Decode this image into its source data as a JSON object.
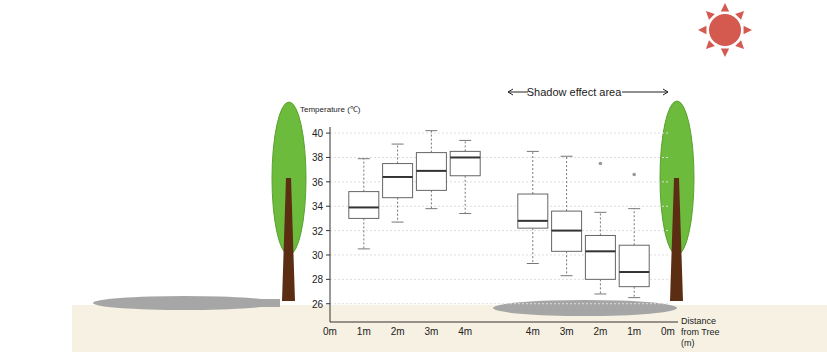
{
  "chart_data": {
    "type": "box",
    "y_label": "Temperature (℃)",
    "x_label": [
      "Distance",
      "from Tree",
      "(m)"
    ],
    "annotation": "Shadow effect area",
    "categories": [
      "0m",
      "1m",
      "2m",
      "3m",
      "4m",
      null,
      "4m",
      "3m",
      "2m",
      "1m",
      "0m"
    ],
    "max": [
      null,
      37.9,
      39.1,
      40.2,
      39.4,
      null,
      38.5,
      38.1,
      33.5,
      33.8,
      null
    ],
    "q3": [
      null,
      35.2,
      37.5,
      38.4,
      38.5,
      null,
      35.0,
      33.6,
      31.6,
      30.8,
      null
    ],
    "median": [
      null,
      33.9,
      36.4,
      36.9,
      38.0,
      null,
      32.8,
      32.0,
      30.3,
      28.6,
      null
    ],
    "q1": [
      null,
      33.0,
      34.7,
      35.3,
      36.5,
      null,
      32.2,
      30.3,
      28.0,
      27.4,
      null
    ],
    "min": [
      null,
      30.5,
      32.7,
      33.8,
      33.4,
      null,
      29.3,
      28.3,
      26.8,
      26.5,
      null
    ],
    "outliers": [
      null,
      [],
      [],
      [],
      [],
      null,
      [],
      [],
      [
        37.5
      ],
      [
        36.6
      ],
      null
    ],
    "color": "#ffffff",
    "ylim": [
      24.5,
      40.5
    ],
    "yticks": [
      26,
      28,
      30,
      32,
      34,
      36,
      38,
      40
    ],
    "grid": true
  }
}
